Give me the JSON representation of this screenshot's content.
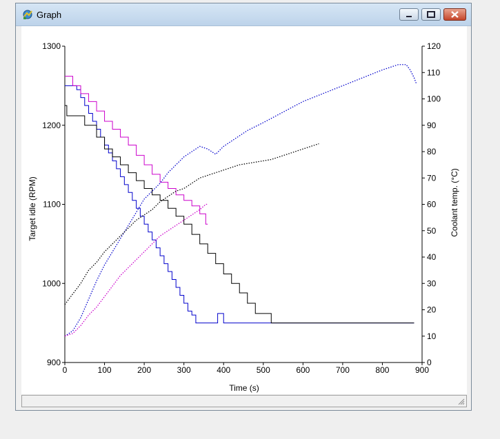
{
  "window": {
    "title": "Graph"
  },
  "chart_data": {
    "type": "line",
    "xlabel": "Time (s)",
    "ylabel_left": "Target idle (RPM)",
    "ylabel_right": "Coolant temp. (°C)",
    "xlim": [
      0,
      900
    ],
    "ylim_left": [
      900,
      1300
    ],
    "ylim_right": [
      0,
      120
    ],
    "x_ticks": [
      0,
      100,
      200,
      300,
      400,
      500,
      600,
      700,
      800,
      900
    ],
    "y_left_ticks": [
      900,
      1000,
      1100,
      1200,
      1300
    ],
    "y_right_ticks": [
      0,
      10,
      20,
      30,
      40,
      50,
      60,
      70,
      80,
      90,
      100,
      110,
      120
    ],
    "grid": false,
    "series": [
      {
        "axis": "left",
        "style": "solid",
        "color": "#0000cc",
        "x": [
          0,
          20,
          30,
          40,
          50,
          60,
          70,
          80,
          90,
          100,
          110,
          120,
          130,
          140,
          150,
          160,
          170,
          180,
          190,
          200,
          210,
          220,
          230,
          240,
          250,
          260,
          270,
          280,
          290,
          300,
          310,
          320,
          330,
          380,
          385,
          390,
          395,
          400,
          420,
          500,
          600,
          700,
          800,
          880
        ],
        "y": [
          1250,
          1250,
          1245,
          1235,
          1225,
          1215,
          1205,
          1195,
          1185,
          1175,
          1165,
          1155,
          1145,
          1135,
          1125,
          1115,
          1105,
          1095,
          1085,
          1075,
          1065,
          1055,
          1045,
          1035,
          1025,
          1015,
          1005,
          995,
          985,
          975,
          965,
          960,
          950,
          950,
          962,
          962,
          962,
          950,
          950,
          950,
          950,
          950,
          950,
          950
        ]
      },
      {
        "axis": "left",
        "style": "solid",
        "color": "#000000",
        "x": [
          0,
          5,
          50,
          80,
          100,
          120,
          140,
          160,
          180,
          200,
          220,
          240,
          260,
          280,
          300,
          320,
          340,
          360,
          380,
          400,
          420,
          440,
          460,
          480,
          520,
          550,
          600,
          880
        ],
        "y": [
          1225,
          1212,
          1200,
          1185,
          1170,
          1160,
          1150,
          1140,
          1130,
          1120,
          1112,
          1105,
          1095,
          1085,
          1075,
          1062,
          1050,
          1038,
          1025,
          1012,
          1000,
          988,
          975,
          962,
          950,
          950,
          950,
          950
        ]
      },
      {
        "axis": "left",
        "style": "solid",
        "color": "#cc00cc",
        "x": [
          0,
          20,
          40,
          60,
          80,
          100,
          120,
          140,
          160,
          180,
          200,
          220,
          240,
          260,
          280,
          300,
          320,
          340,
          355,
          360
        ],
        "y": [
          1262,
          1250,
          1240,
          1230,
          1218,
          1205,
          1195,
          1185,
          1175,
          1162,
          1150,
          1138,
          1128,
          1120,
          1112,
          1105,
          1098,
          1088,
          1075,
          1075
        ]
      },
      {
        "axis": "right",
        "style": "dotted",
        "color": "#0000cc",
        "x": [
          0,
          20,
          40,
          60,
          80,
          100,
          120,
          140,
          160,
          180,
          200,
          220,
          240,
          260,
          280,
          300,
          320,
          340,
          360,
          380,
          400,
          420,
          440,
          460,
          500,
          550,
          600,
          650,
          700,
          750,
          800,
          840,
          860,
          870,
          880,
          885
        ],
        "y": [
          10,
          12,
          17,
          24,
          31,
          37,
          42,
          47,
          52,
          57,
          62,
          65,
          68,
          72,
          75,
          78,
          80,
          82,
          81,
          79,
          82,
          84,
          86,
          88,
          91,
          95,
          99,
          102,
          105,
          108,
          111,
          113,
          113,
          111,
          108,
          106
        ]
      },
      {
        "axis": "right",
        "style": "dotted",
        "color": "#000000",
        "x": [
          0,
          20,
          40,
          60,
          80,
          100,
          120,
          140,
          160,
          180,
          200,
          220,
          240,
          260,
          280,
          300,
          320,
          340,
          360,
          380,
          400,
          440,
          480,
          520,
          560,
          600,
          620,
          640
        ],
        "y": [
          22,
          26,
          30,
          35,
          38,
          42,
          45,
          48,
          51,
          54,
          56,
          58,
          61,
          63,
          65,
          66,
          68,
          70,
          71,
          72,
          73,
          75,
          76,
          77,
          79,
          81,
          82,
          83
        ]
      },
      {
        "axis": "right",
        "style": "dotted",
        "color": "#cc00cc",
        "x": [
          0,
          20,
          40,
          60,
          80,
          100,
          120,
          140,
          160,
          180,
          200,
          220,
          240,
          260,
          280,
          300,
          320,
          340,
          355,
          360
        ],
        "y": [
          10,
          11,
          14,
          18,
          21,
          25,
          29,
          33,
          36,
          39,
          42,
          45,
          48,
          50,
          52,
          54,
          56,
          58,
          60,
          60
        ]
      }
    ]
  }
}
